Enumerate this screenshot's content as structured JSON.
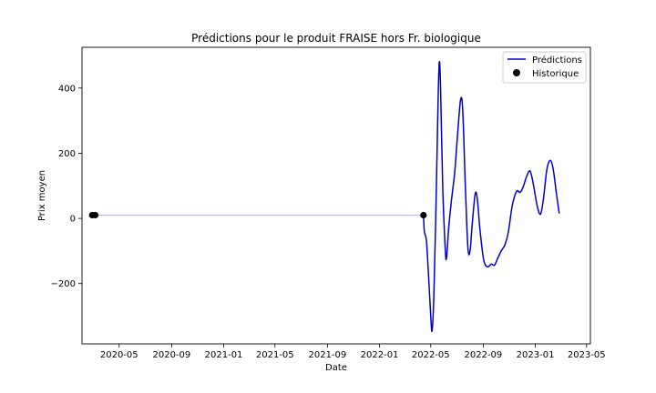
{
  "chart_data": {
    "type": "line",
    "title": "Prédictions pour le produit FRAISE hors Fr. biologique",
    "xlabel": "Date",
    "ylabel": "Prix moyen",
    "xlim": [
      "2020-02-04",
      "2023-05-10"
    ],
    "ylim": [
      -385,
      525
    ],
    "x_ticks": [
      "2020-05",
      "2020-09",
      "2021-01",
      "2021-05",
      "2021-09",
      "2022-01",
      "2022-05",
      "2022-09",
      "2023-01",
      "2023-05"
    ],
    "y_ticks": [
      -200,
      0,
      200,
      400
    ],
    "y_tick_labels": [
      "−200",
      "0",
      "200",
      "400"
    ],
    "grid": false,
    "legend_position": "top-right",
    "series": [
      {
        "name": "Prédictions",
        "kind": "line",
        "color": "#0000cc",
        "points": [
          [
            "2022-04-14",
            10
          ],
          [
            "2022-04-16",
            -40
          ],
          [
            "2022-04-21",
            -70
          ],
          [
            "2022-04-26",
            -180
          ],
          [
            "2022-05-01",
            -300
          ],
          [
            "2022-05-04",
            -345
          ],
          [
            "2022-05-08",
            -250
          ],
          [
            "2022-05-13",
            20
          ],
          [
            "2022-05-18",
            350
          ],
          [
            "2022-05-21",
            480
          ],
          [
            "2022-05-24",
            400
          ],
          [
            "2022-05-29",
            100
          ],
          [
            "2022-06-04",
            -95
          ],
          [
            "2022-06-07",
            -120
          ],
          [
            "2022-06-12",
            -30
          ],
          [
            "2022-06-18",
            50
          ],
          [
            "2022-06-26",
            140
          ],
          [
            "2022-07-03",
            260
          ],
          [
            "2022-07-10",
            365
          ],
          [
            "2022-07-15",
            330
          ],
          [
            "2022-07-21",
            100
          ],
          [
            "2022-07-27",
            -90
          ],
          [
            "2022-08-01",
            -100
          ],
          [
            "2022-08-06",
            -20
          ],
          [
            "2022-08-13",
            75
          ],
          [
            "2022-08-18",
            60
          ],
          [
            "2022-08-24",
            -30
          ],
          [
            "2022-09-01",
            -120
          ],
          [
            "2022-09-07",
            -145
          ],
          [
            "2022-09-13",
            -148
          ],
          [
            "2022-09-20",
            -140
          ],
          [
            "2022-09-27",
            -144
          ],
          [
            "2022-10-04",
            -125
          ],
          [
            "2022-10-13",
            -100
          ],
          [
            "2022-10-22",
            -80
          ],
          [
            "2022-10-30",
            -40
          ],
          [
            "2022-11-08",
            40
          ],
          [
            "2022-11-18",
            83
          ],
          [
            "2022-11-26",
            80
          ],
          [
            "2022-12-03",
            95
          ],
          [
            "2022-12-12",
            130
          ],
          [
            "2022-12-20",
            145
          ],
          [
            "2022-12-28",
            100
          ],
          [
            "2023-01-05",
            40
          ],
          [
            "2023-01-13",
            13
          ],
          [
            "2023-01-20",
            60
          ],
          [
            "2023-01-28",
            150
          ],
          [
            "2023-02-05",
            178
          ],
          [
            "2023-02-12",
            150
          ],
          [
            "2023-02-19",
            80
          ],
          [
            "2023-02-26",
            15
          ]
        ]
      },
      {
        "name": "Historique",
        "kind": "points",
        "color": "#000000",
        "points": [
          [
            "2020-02-28",
            10
          ],
          [
            "2020-03-06",
            10
          ],
          [
            "2022-04-14",
            10
          ]
        ]
      }
    ],
    "connector": {
      "color": "#b8b8f0",
      "points": [
        [
          "2020-02-28",
          10
        ],
        [
          "2022-04-14",
          10
        ]
      ]
    }
  }
}
